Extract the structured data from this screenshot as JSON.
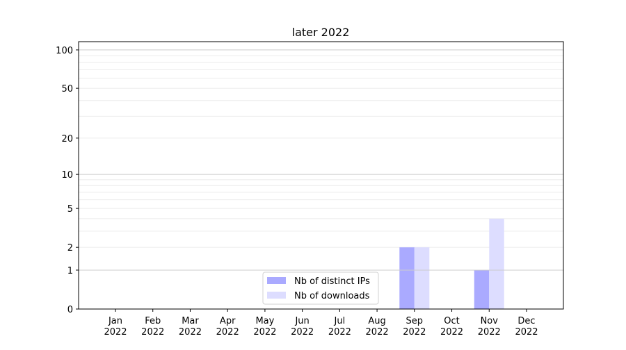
{
  "chart_data": {
    "type": "bar",
    "title": "later 2022",
    "xlabel": "",
    "ylabel": "",
    "y_scale": "log(1+y)",
    "ylim": [
      0,
      116
    ],
    "y_ticks": [
      0,
      1,
      2,
      5,
      10,
      20,
      50,
      100
    ],
    "y_tick_labels": [
      "0",
      "1",
      "2",
      "5",
      "10",
      "20",
      "50",
      "100"
    ],
    "grid": true,
    "categories": [
      "Jan\n2022",
      "Feb\n2022",
      "Mar\n2022",
      "Apr\n2022",
      "May\n2022",
      "Jun\n2022",
      "Jul\n2022",
      "Aug\n2022",
      "Sep\n2022",
      "Oct\n2022",
      "Nov\n2022",
      "Dec\n2022"
    ],
    "category_lines": [
      [
        "Jan",
        "2022"
      ],
      [
        "Feb",
        "2022"
      ],
      [
        "Mar",
        "2022"
      ],
      [
        "Apr",
        "2022"
      ],
      [
        "May",
        "2022"
      ],
      [
        "Jun",
        "2022"
      ],
      [
        "Jul",
        "2022"
      ],
      [
        "Aug",
        "2022"
      ],
      [
        "Sep",
        "2022"
      ],
      [
        "Oct",
        "2022"
      ],
      [
        "Nov",
        "2022"
      ],
      [
        "Dec",
        "2022"
      ]
    ],
    "series": [
      {
        "name": "Nb of distinct IPs",
        "color": "#aaaaff",
        "values": [
          0,
          0,
          0,
          0,
          0,
          0,
          0,
          0,
          2,
          0,
          1,
          0
        ]
      },
      {
        "name": "Nb of downloads",
        "color": "#ddddff",
        "values": [
          0,
          0,
          0,
          0,
          0,
          0,
          0,
          0,
          2,
          0,
          4,
          0
        ]
      }
    ],
    "legend_position": "lower-center"
  }
}
